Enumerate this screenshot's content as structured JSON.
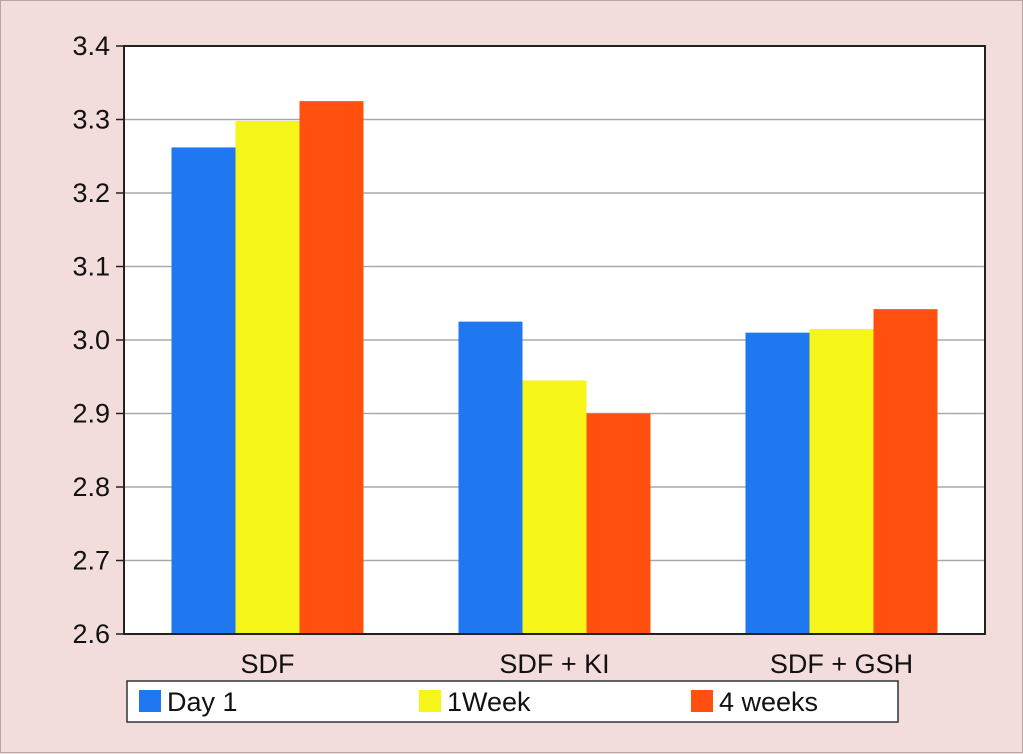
{
  "chart_data": {
    "type": "bar",
    "title": "",
    "xlabel": "",
    "ylabel": "",
    "categories": [
      "SDF",
      "SDF + KI",
      "SDF + GSH"
    ],
    "series": [
      {
        "name": "Day 1",
        "color": "#1f78f0",
        "values": [
          3.262,
          3.025,
          3.01
        ]
      },
      {
        "name": "1Week",
        "color": "#f5f51a",
        "values": [
          3.298,
          2.945,
          3.015
        ]
      },
      {
        "name": "4 weeks",
        "color": "#ff5010",
        "values": [
          3.325,
          2.9,
          3.042
        ]
      }
    ],
    "ylim": [
      2.6,
      3.4
    ],
    "yticks": [
      "2.6",
      "2.7",
      "2.8",
      "2.9",
      "3.0",
      "3.1",
      "3.2",
      "3.3",
      "3.4"
    ],
    "grid": true,
    "legend_position": "bottom"
  }
}
